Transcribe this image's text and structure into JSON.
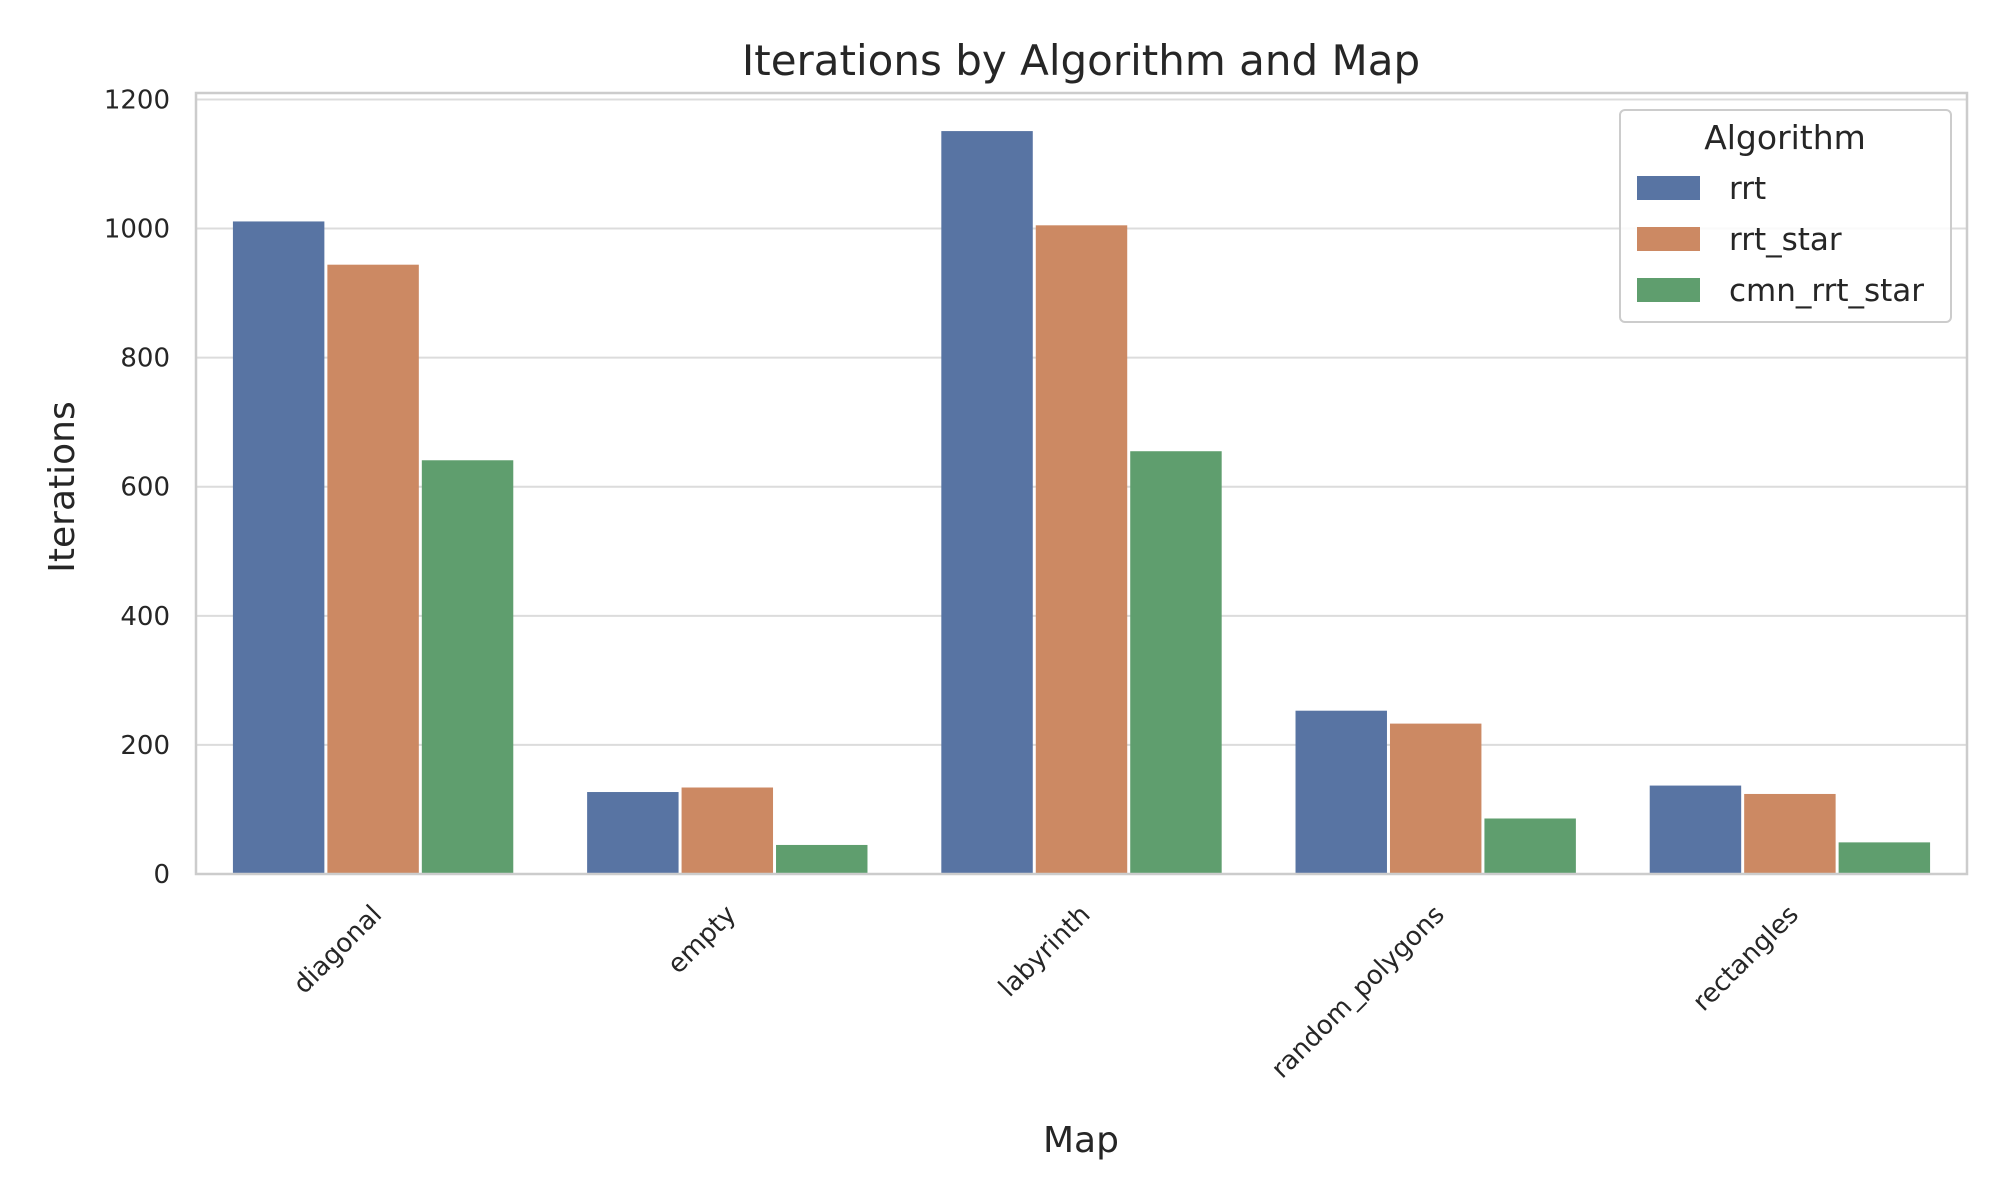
{
  "chart_data": {
    "type": "bar",
    "title": "Iterations by Algorithm and Map",
    "xlabel": "Map",
    "ylabel": "Iterations",
    "categories": [
      "diagonal",
      "empty",
      "labyrinth",
      "random_polygons",
      "rectangles"
    ],
    "series": [
      {
        "name": "rrt",
        "color": "#5874a3",
        "values": [
          1011,
          127,
          1151,
          253,
          137
        ]
      },
      {
        "name": "rrt_star",
        "color": "#cc8963",
        "values": [
          944,
          134,
          1005,
          233,
          124
        ]
      },
      {
        "name": "cmn_rrt_star",
        "color": "#5f9e6e",
        "values": [
          641,
          45,
          655,
          86,
          49
        ]
      }
    ],
    "ylim": [
      0,
      1210
    ],
    "yticks": [
      0,
      200,
      400,
      600,
      800,
      1000,
      1200
    ],
    "grid": true,
    "legend": {
      "title": "Algorithm",
      "placement": "top-right"
    }
  }
}
